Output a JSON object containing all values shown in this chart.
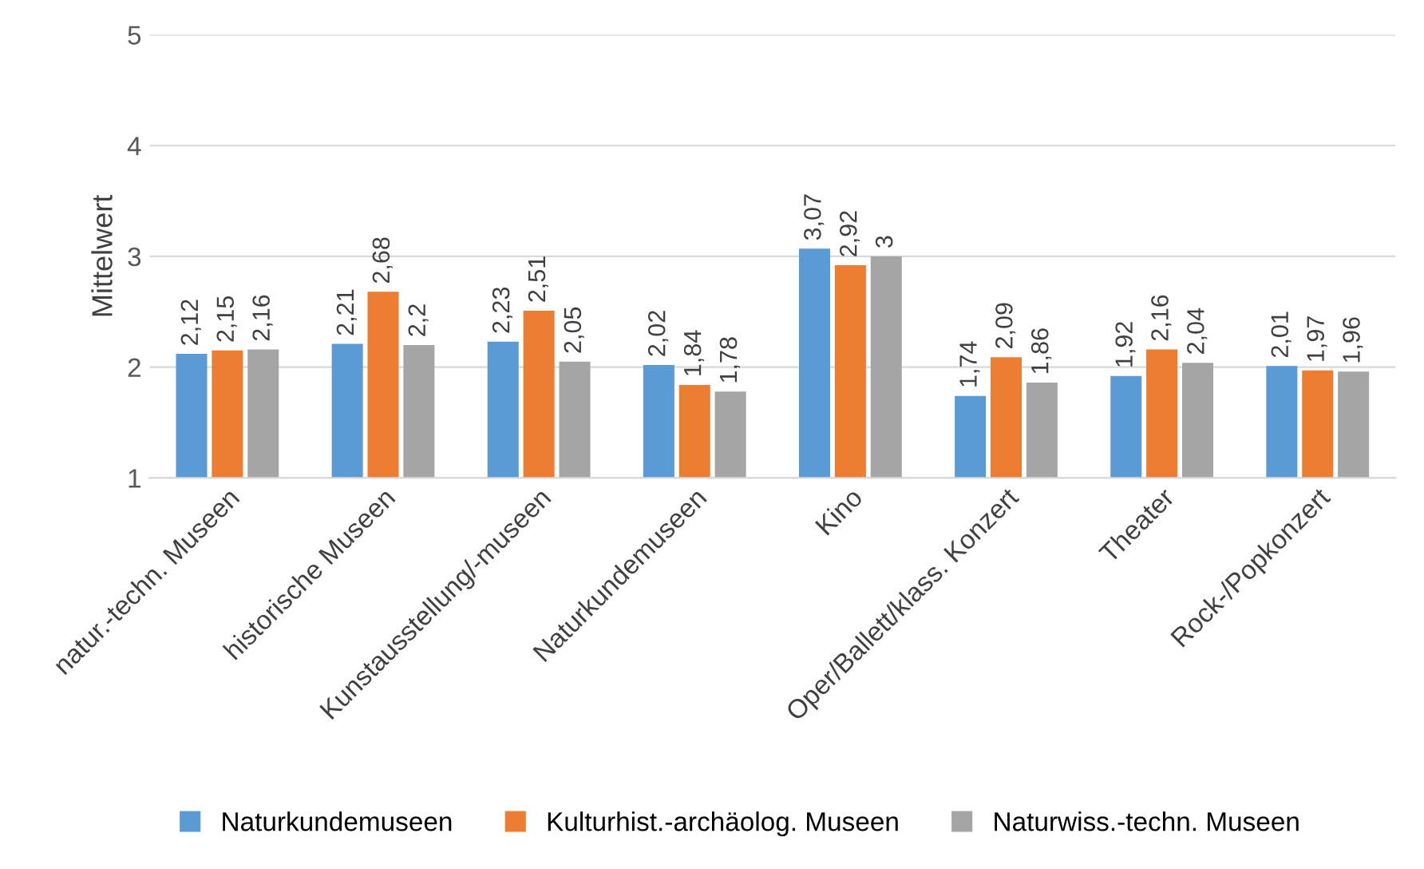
{
  "chart_data": {
    "type": "bar",
    "ylabel": "Mittelwert",
    "categories": [
      "natur.-techn. Museen",
      "historische Museen",
      "Kunstausstellung/-museen",
      "Naturkundemuseen",
      "Kino",
      "Oper/Ballett/klass. Konzert",
      "Theater",
      "Rock-/Popkonzert"
    ],
    "series": [
      {
        "name": "Naturkundemuseen",
        "color": "#5b9bd5",
        "values": [
          2.12,
          2.21,
          2.23,
          2.02,
          3.07,
          1.74,
          1.92,
          2.01
        ],
        "value_labels": [
          "2,12",
          "2,21",
          "2,23",
          "2,02",
          "3,07",
          "1,74",
          "1,92",
          "2,01"
        ]
      },
      {
        "name": "Kulturhist.-archäolog. Museen",
        "color": "#ed7d31",
        "values": [
          2.15,
          2.68,
          2.51,
          1.84,
          2.92,
          2.09,
          2.16,
          1.97
        ],
        "value_labels": [
          "2,15",
          "2,68",
          "2,51",
          "1,84",
          "2,92",
          "2,09",
          "2,16",
          "1,97"
        ]
      },
      {
        "name": "Naturwiss.-techn. Museen",
        "color": "#a5a5a5",
        "values": [
          2.16,
          2.2,
          2.05,
          1.78,
          3,
          1.86,
          2.04,
          1.96
        ],
        "value_labels": [
          "2,16",
          "2,2",
          "2,05",
          "1,78",
          "3",
          "1,86",
          "2,04",
          "1,96"
        ]
      }
    ],
    "ylim": [
      1,
      5
    ],
    "yticks": [
      1,
      2,
      3,
      4,
      5
    ],
    "grid": "y",
    "legend": "bottom"
  }
}
